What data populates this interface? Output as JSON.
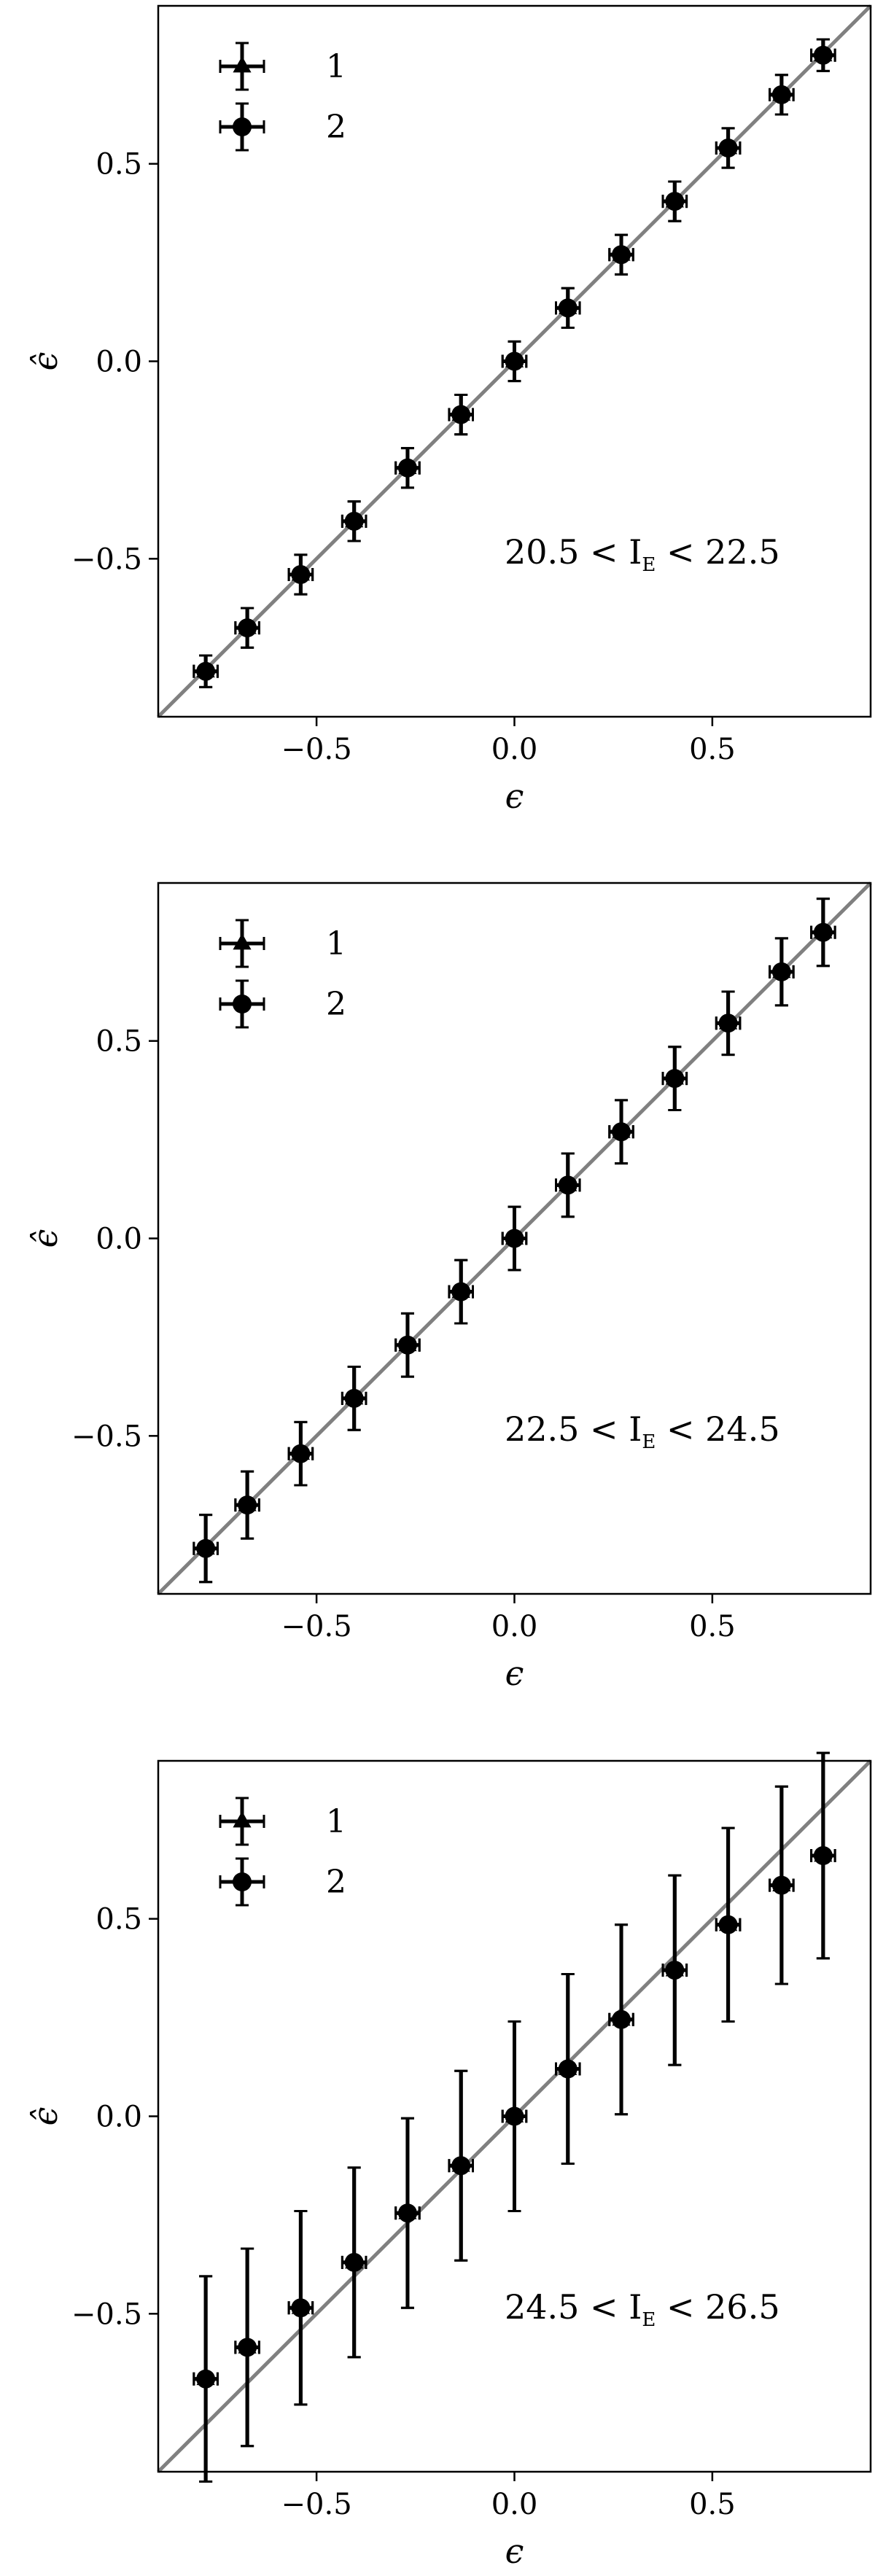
{
  "chart_data": [
    {
      "type": "scatter",
      "xlabel": "ϵ",
      "ylabel": "ϵ̂",
      "xlim": [
        -0.9,
        0.9
      ],
      "ylim": [
        -0.9,
        0.9
      ],
      "xticks": [
        "−0.5",
        "0.0",
        "0.5"
      ],
      "yticks": [
        "0.5",
        "0.0",
        "−0.5"
      ],
      "xtick_values": [
        -0.5,
        0.0,
        0.5
      ],
      "ytick_values": [
        0.5,
        0.0,
        -0.5
      ],
      "grid": false,
      "legend_position": "top-left",
      "reference_line": "y = x",
      "annotation": {
        "prefix": "20.5 < I",
        "subscript": "E",
        "suffix": " < 22.5"
      },
      "series": [
        {
          "name": "1",
          "marker": "triangle",
          "x": [
            -0.78,
            -0.675,
            -0.54,
            -0.405,
            -0.27,
            -0.135,
            0.0,
            0.135,
            0.27,
            0.405,
            0.54,
            0.675,
            0.78
          ],
          "y": [
            -0.785,
            -0.675,
            -0.54,
            -0.405,
            -0.27,
            -0.135,
            0.0,
            0.135,
            0.27,
            0.405,
            0.54,
            0.675,
            0.775
          ],
          "xerr": [
            0.03,
            0.03,
            0.03,
            0.03,
            0.03,
            0.03,
            0.03,
            0.03,
            0.03,
            0.03,
            0.03,
            0.03,
            0.03
          ],
          "yerr": [
            0.04,
            0.05,
            0.05,
            0.05,
            0.05,
            0.05,
            0.05,
            0.05,
            0.05,
            0.05,
            0.05,
            0.05,
            0.04
          ]
        },
        {
          "name": "2",
          "marker": "circle",
          "x": [
            -0.78,
            -0.675,
            -0.54,
            -0.405,
            -0.27,
            -0.135,
            0.0,
            0.135,
            0.27,
            0.405,
            0.54,
            0.675,
            0.78
          ],
          "y": [
            -0.785,
            -0.675,
            -0.54,
            -0.405,
            -0.27,
            -0.135,
            0.0,
            0.135,
            0.27,
            0.405,
            0.54,
            0.675,
            0.775
          ],
          "xerr": [
            0.03,
            0.03,
            0.03,
            0.03,
            0.03,
            0.03,
            0.03,
            0.03,
            0.03,
            0.03,
            0.03,
            0.03,
            0.03
          ],
          "yerr": [
            0.04,
            0.05,
            0.05,
            0.05,
            0.05,
            0.05,
            0.05,
            0.05,
            0.05,
            0.05,
            0.05,
            0.05,
            0.04
          ]
        }
      ]
    },
    {
      "type": "scatter",
      "xlabel": "ϵ",
      "ylabel": "ϵ̂",
      "xlim": [
        -0.9,
        0.9
      ],
      "ylim": [
        -0.9,
        0.9
      ],
      "xticks": [
        "−0.5",
        "0.0",
        "0.5"
      ],
      "yticks": [
        "0.5",
        "0.0",
        "−0.5"
      ],
      "xtick_values": [
        -0.5,
        0.0,
        0.5
      ],
      "ytick_values": [
        0.5,
        0.0,
        -0.5
      ],
      "grid": false,
      "legend_position": "top-left",
      "reference_line": "y = x",
      "annotation": {
        "prefix": "22.5 < I",
        "subscript": "E",
        "suffix": " < 24.5"
      },
      "series": [
        {
          "name": "1",
          "marker": "triangle",
          "x": [
            -0.78,
            -0.675,
            -0.54,
            -0.405,
            -0.27,
            -0.135,
            0.0,
            0.135,
            0.27,
            0.405,
            0.54,
            0.675,
            0.78
          ],
          "y": [
            -0.785,
            -0.675,
            -0.545,
            -0.405,
            -0.27,
            -0.135,
            0.0,
            0.135,
            0.27,
            0.405,
            0.545,
            0.675,
            0.775
          ],
          "xerr": [
            0.03,
            0.03,
            0.03,
            0.03,
            0.03,
            0.03,
            0.03,
            0.03,
            0.03,
            0.03,
            0.03,
            0.03,
            0.03
          ],
          "yerr": [
            0.085,
            0.085,
            0.08,
            0.08,
            0.08,
            0.08,
            0.08,
            0.08,
            0.08,
            0.08,
            0.08,
            0.085,
            0.085
          ]
        },
        {
          "name": "2",
          "marker": "circle",
          "x": [
            -0.78,
            -0.675,
            -0.54,
            -0.405,
            -0.27,
            -0.135,
            0.0,
            0.135,
            0.27,
            0.405,
            0.54,
            0.675,
            0.78
          ],
          "y": [
            -0.785,
            -0.675,
            -0.545,
            -0.405,
            -0.27,
            -0.135,
            0.0,
            0.135,
            0.27,
            0.405,
            0.545,
            0.675,
            0.775
          ],
          "xerr": [
            0.03,
            0.03,
            0.03,
            0.03,
            0.03,
            0.03,
            0.03,
            0.03,
            0.03,
            0.03,
            0.03,
            0.03,
            0.03
          ],
          "yerr": [
            0.085,
            0.085,
            0.08,
            0.08,
            0.08,
            0.08,
            0.08,
            0.08,
            0.08,
            0.08,
            0.08,
            0.085,
            0.085
          ]
        }
      ]
    },
    {
      "type": "scatter",
      "xlabel": "ϵ",
      "ylabel": "ϵ̂",
      "xlim": [
        -0.9,
        0.9
      ],
      "ylim": [
        -0.9,
        0.9
      ],
      "xticks": [
        "−0.5",
        "0.0",
        "0.5"
      ],
      "yticks": [
        "0.5",
        "0.0",
        "−0.5"
      ],
      "xtick_values": [
        -0.5,
        0.0,
        0.5
      ],
      "ytick_values": [
        0.5,
        0.0,
        -0.5
      ],
      "grid": false,
      "legend_position": "top-left",
      "reference_line": "y = x",
      "annotation": {
        "prefix": "24.5 < I",
        "subscript": "E",
        "suffix": " < 26.5"
      },
      "series": [
        {
          "name": "1",
          "marker": "triangle",
          "x": [
            -0.78,
            -0.675,
            -0.54,
            -0.405,
            -0.27,
            -0.135,
            0.0,
            0.135,
            0.27,
            0.405,
            0.54,
            0.675,
            0.78
          ],
          "y": [
            -0.665,
            -0.585,
            -0.485,
            -0.37,
            -0.245,
            -0.125,
            0.0,
            0.12,
            0.245,
            0.37,
            0.485,
            0.585,
            0.66
          ],
          "xerr": [
            0.03,
            0.03,
            0.03,
            0.03,
            0.03,
            0.03,
            0.03,
            0.03,
            0.03,
            0.03,
            0.03,
            0.03,
            0.03
          ],
          "yerr": [
            0.26,
            0.25,
            0.245,
            0.24,
            0.24,
            0.24,
            0.24,
            0.24,
            0.24,
            0.24,
            0.245,
            0.25,
            0.26
          ]
        },
        {
          "name": "2",
          "marker": "circle",
          "x": [
            -0.78,
            -0.675,
            -0.54,
            -0.405,
            -0.27,
            -0.135,
            0.0,
            0.135,
            0.27,
            0.405,
            0.54,
            0.675,
            0.78
          ],
          "y": [
            -0.665,
            -0.585,
            -0.485,
            -0.37,
            -0.245,
            -0.125,
            0.0,
            0.12,
            0.245,
            0.37,
            0.485,
            0.585,
            0.66
          ],
          "xerr": [
            0.03,
            0.03,
            0.03,
            0.03,
            0.03,
            0.03,
            0.03,
            0.03,
            0.03,
            0.03,
            0.03,
            0.03,
            0.03
          ],
          "yerr": [
            0.26,
            0.25,
            0.245,
            0.24,
            0.24,
            0.24,
            0.24,
            0.24,
            0.24,
            0.24,
            0.245,
            0.25,
            0.26
          ]
        }
      ]
    }
  ]
}
